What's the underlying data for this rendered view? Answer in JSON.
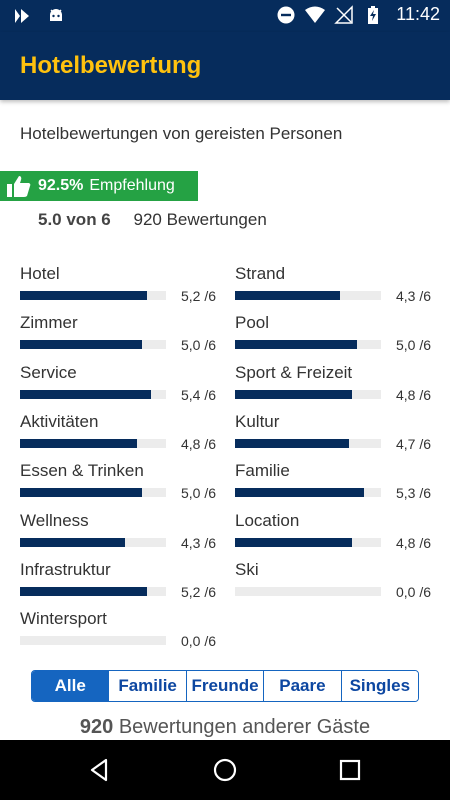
{
  "status_bar": {
    "time": "11:42",
    "left_icons": [
      "vpn-play-icon",
      "android-icon"
    ],
    "right_icons": [
      "do-not-disturb-icon",
      "wifi-icon",
      "no-signal-icon",
      "battery-charging-icon"
    ]
  },
  "app_bar": {
    "title": "Hotelbewertung"
  },
  "subtitle": "Hotelbewertungen von gereisten Personen",
  "recommendation": {
    "percent": "92.5%",
    "label": "Empfehlung",
    "icon": "thumbs-up-icon"
  },
  "score": {
    "value": "5.0 von 6",
    "count": "920 Bewertungen"
  },
  "ratings": {
    "left": [
      {
        "name": "Hotel",
        "value": "5,2 /6",
        "score": 5.2
      },
      {
        "name": "Zimmer",
        "value": "5,0 /6",
        "score": 5.0
      },
      {
        "name": "Service",
        "value": "5,4 /6",
        "score": 5.4
      },
      {
        "name": "Aktivitäten",
        "value": "4,8 /6",
        "score": 4.8
      },
      {
        "name": "Essen & Trinken",
        "value": "5,0 /6",
        "score": 5.0
      },
      {
        "name": "Wellness",
        "value": "4,3 /6",
        "score": 4.3
      },
      {
        "name": "Infrastruktur",
        "value": "5,2 /6",
        "score": 5.2
      },
      {
        "name": "Wintersport",
        "value": "0,0 /6",
        "score": 0.0
      }
    ],
    "right": [
      {
        "name": "Strand",
        "value": "4,3 /6",
        "score": 4.3
      },
      {
        "name": "Pool",
        "value": "5,0 /6",
        "score": 5.0
      },
      {
        "name": "Sport & Freizeit",
        "value": "4,8 /6",
        "score": 4.8
      },
      {
        "name": "Kultur",
        "value": "4,7 /6",
        "score": 4.7
      },
      {
        "name": "Familie",
        "value": "5,3 /6",
        "score": 5.3
      },
      {
        "name": "Location",
        "value": "4,8 /6",
        "score": 4.8
      },
      {
        "name": "Ski",
        "value": "0,0 /6",
        "score": 0.0
      }
    ]
  },
  "filters": {
    "active": "Alle",
    "items": [
      "Alle",
      "Familie",
      "Freunde",
      "Paare",
      "Singles"
    ]
  },
  "reviews_heading": {
    "count": "920",
    "text": "Bewertungen anderer Gäste"
  },
  "nav": [
    "back-icon",
    "home-icon",
    "recents-icon"
  ],
  "colors": {
    "primary": "#062c5c",
    "accent": "#ffc20e",
    "recommend": "#25a244",
    "filter": "#1565c0"
  }
}
